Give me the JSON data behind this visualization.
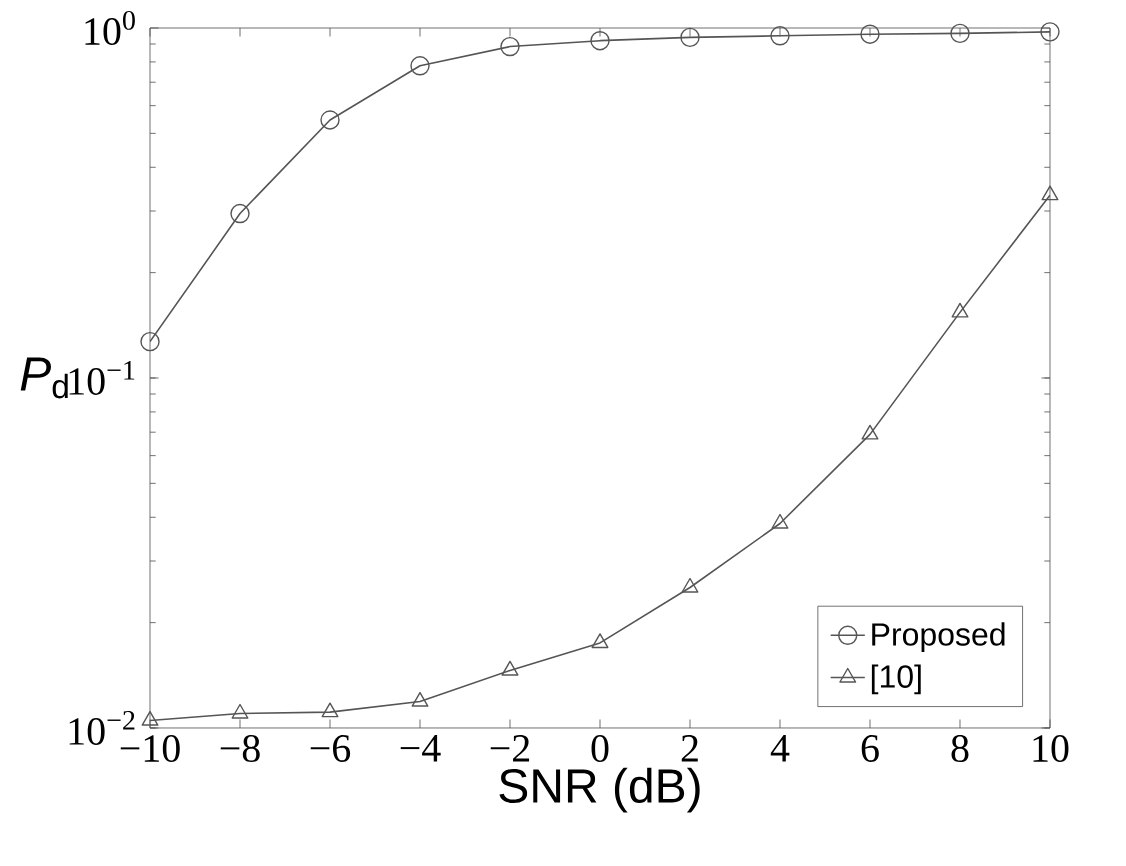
{
  "chart_data": {
    "type": "line",
    "xlabel": "SNR (dB)",
    "ylabel": "*P*$_{d}$",
    "log": "y",
    "grid": false,
    "legend": "bottom right",
    "line_style": "solid",
    "x": [
      -10,
      -8,
      -6,
      -4,
      -2,
      0,
      2,
      4,
      6,
      8,
      10
    ],
    "xlim": [
      -10,
      10
    ],
    "xticks": [
      {
        "value": -10,
        "label": "−10"
      },
      {
        "value": -8,
        "label": "−8"
      },
      {
        "value": -6,
        "label": "−6"
      },
      {
        "value": -4,
        "label": "−4"
      },
      {
        "value": -2,
        "label": "−2"
      },
      0,
      2,
      4,
      6,
      8,
      10
    ],
    "ylim": [
      0.01,
      1
    ],
    "yticks": [
      {
        "value": 0.01,
        "label": "10$^{−2}$"
      },
      {
        "value": 0.1,
        "label": "10$^{−1}$"
      },
      {
        "value": 1,
        "label": "10$^{0}$"
      }
    ],
    "series": [
      {
        "name": "Proposed",
        "color": "#555555",
        "marker": "circle",
        "values": [
          0.127,
          0.295,
          0.546,
          0.78,
          0.885,
          0.92,
          0.94,
          0.95,
          0.96,
          0.965,
          0.975
        ]
      },
      {
        "name": "[10]",
        "color": "#555555",
        "marker": "triangle",
        "values": [
          0.0105,
          0.011,
          0.0111,
          0.0119,
          0.0146,
          0.0175,
          0.0252,
          0.0384,
          0.069,
          0.154,
          0.333
        ]
      }
    ]
  }
}
